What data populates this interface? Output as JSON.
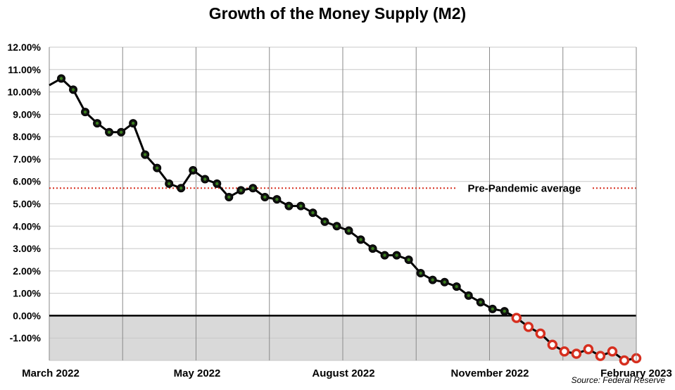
{
  "chart_data": {
    "type": "line",
    "title": "Growth of the Money Supply (M2)",
    "xlabel": "",
    "ylabel": "",
    "ylim": [
      -2,
      12
    ],
    "y_ticks": [
      "12.00%",
      "11.00%",
      "10.00%",
      "9.00%",
      "8.00%",
      "7.00%",
      "6.00%",
      "5.00%",
      "4.00%",
      "3.00%",
      "2.00%",
      "1.00%",
      "0.00%",
      "-1.00%"
    ],
    "x_ticks": [
      "March 2022",
      "May 2022",
      "August 2022",
      "November 2022",
      "February 2023"
    ],
    "series": [
      {
        "values": [
          10.3,
          10.6,
          10.1,
          9.1,
          8.6,
          8.2,
          8.2,
          8.6,
          7.2,
          6.6,
          5.9,
          5.7,
          6.5,
          6.1,
          5.9,
          5.3,
          5.6,
          5.7,
          5.3,
          5.2,
          4.9,
          4.9,
          4.6,
          4.2,
          4.0,
          3.8,
          3.4,
          3.0,
          2.7,
          2.7,
          2.5,
          1.9,
          1.6,
          1.5,
          1.3,
          0.9,
          0.6,
          0.3,
          0.2,
          -0.1,
          -0.5,
          -0.8,
          -1.3,
          -1.6,
          -1.7,
          -1.5,
          -1.8,
          -1.6,
          -2.0,
          -1.9
        ],
        "marker_colors": {
          "positive": "#3a7d1e",
          "negative": "#d62f1f"
        }
      }
    ],
    "reference_line": {
      "value": 5.7,
      "label": "Pre-Pandemic average",
      "color": "#d62f1f"
    },
    "grid": true,
    "negative_region_fill": "#d9d9d9",
    "line_color": "#000000"
  },
  "source": "Source: Federal Reserve"
}
